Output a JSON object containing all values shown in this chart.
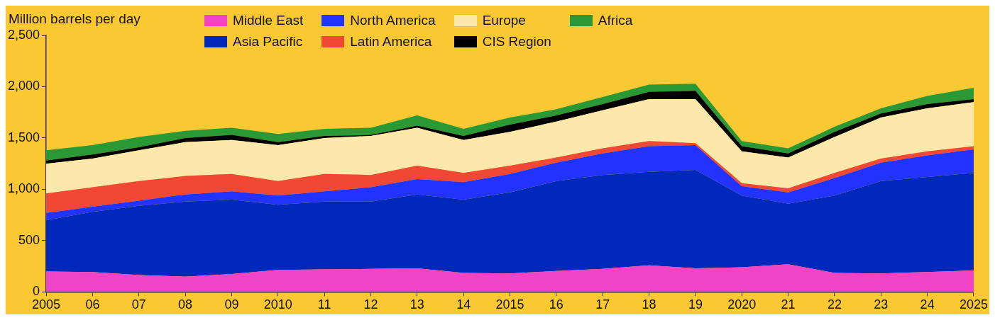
{
  "chart_data": {
    "type": "area",
    "stacked": true,
    "ylabel": "Million barrels per day",
    "legend": "top",
    "categories": [
      "2005",
      "06",
      "07",
      "08",
      "09",
      "2010",
      "11",
      "12",
      "13",
      "14",
      "2015",
      "16",
      "17",
      "18",
      "19",
      "2020",
      "21",
      "22",
      "23",
      "24",
      "2025"
    ],
    "ylim": [
      0,
      2500
    ],
    "yticks": [
      0,
      500,
      {
        "value": 1000,
        "label": "1,000"
      },
      {
        "value": 1500,
        "label": "1,500"
      },
      {
        "value": 2000,
        "label": "2,000"
      },
      {
        "value": 2500,
        "label": "2,500"
      }
    ],
    "series": [
      {
        "name": "Middle East",
        "color": "#f044c8",
        "values": [
          200,
          195,
          165,
          150,
          175,
          215,
          220,
          225,
          230,
          185,
          180,
          205,
          225,
          260,
          230,
          240,
          270,
          185,
          180,
          195,
          210
        ]
      },
      {
        "name": "Asia Pacific",
        "color": "#0029bb",
        "values": [
          500,
          585,
          675,
          730,
          725,
          635,
          660,
          655,
          720,
          715,
          790,
          875,
          915,
          910,
          960,
          700,
          590,
          755,
          900,
          925,
          950
        ]
      },
      {
        "name": "North America",
        "color": "#2233ff",
        "values": [
          70,
          50,
          50,
          70,
          80,
          90,
          100,
          140,
          150,
          170,
          180,
          180,
          210,
          250,
          240,
          90,
          110,
          170,
          180,
          210,
          230
        ]
      },
      {
        "name": "Latin America",
        "color": "#f04834",
        "values": [
          190,
          190,
          190,
          180,
          170,
          140,
          170,
          120,
          130,
          90,
          80,
          50,
          50,
          50,
          20,
          30,
          40,
          50,
          40,
          40,
          30
        ]
      },
      {
        "name": "Europe",
        "color": "#fde8ab",
        "values": [
          290,
          280,
          300,
          330,
          330,
          350,
          350,
          380,
          370,
          320,
          330,
          350,
          370,
          410,
          430,
          310,
          300,
          350,
          400,
          420,
          430
        ]
      },
      {
        "name": "CIS Region",
        "color": "#000000",
        "values": [
          30,
          40,
          30,
          40,
          50,
          30,
          20,
          10,
          20,
          40,
          70,
          60,
          60,
          70,
          80,
          50,
          40,
          50,
          40,
          40,
          30
        ]
      },
      {
        "name": "Africa",
        "color": "#2a9834",
        "values": [
          100,
          90,
          100,
          70,
          70,
          80,
          70,
          70,
          100,
          70,
          70,
          60,
          70,
          70,
          70,
          50,
          50,
          50,
          50,
          80,
          110
        ]
      }
    ]
  }
}
